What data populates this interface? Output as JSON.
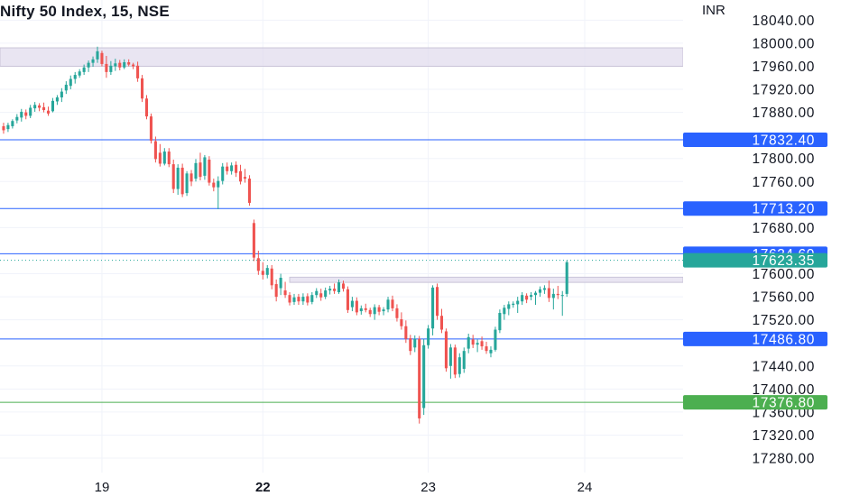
{
  "header": {
    "title": "Nifty 50 Index, 15, NSE",
    "currency": "INR"
  },
  "colors": {
    "up": "#26a69a",
    "down": "#ef5350",
    "hline": "#2962ff",
    "green_line": "#4caf50",
    "zone": "#e1dcee",
    "zone_border": "#c9c4d8",
    "grid": "#f0f3fa"
  },
  "chart_data": {
    "type": "candlestick",
    "title": "Nifty 50 Index, 15, NSE",
    "y_unit": "INR",
    "ylim": [
      17255,
      18075
    ],
    "y_ticks": [
      18040,
      18000,
      17960,
      17920,
      17880,
      17800,
      17760,
      17680,
      17600,
      17560,
      17520,
      17440,
      17400,
      17360,
      17320,
      17280
    ],
    "y_tick_labels": [
      "18040.00",
      "18000.00",
      "17960.00",
      "17920.00",
      "17880.00",
      "17800.00",
      "17760.00",
      "17680.00",
      "17600.00",
      "17560.00",
      "17520.00",
      "17440.00",
      "17400.00",
      "17360.00",
      "17320.00",
      "17280.00"
    ],
    "x_labels": [
      {
        "label": "19",
        "bar": 22,
        "bold": false
      },
      {
        "label": "22",
        "bar": 58,
        "bold": true
      },
      {
        "label": "23",
        "bar": 95,
        "bold": false
      },
      {
        "label": "24",
        "bar": 130,
        "bold": false
      }
    ],
    "x_bar_range": [
      -0.8,
      152
    ],
    "candles": [
      [
        17856,
        17862,
        17843,
        17849
      ],
      [
        17851,
        17862,
        17846,
        17858
      ],
      [
        17856,
        17868,
        17852,
        17865
      ],
      [
        17866,
        17877,
        17861,
        17872
      ],
      [
        17871,
        17886,
        17864,
        17881
      ],
      [
        17880,
        17885,
        17868,
        17874
      ],
      [
        17874,
        17893,
        17870,
        17888
      ],
      [
        17887,
        17898,
        17881,
        17893
      ],
      [
        17892,
        17896,
        17882,
        17888
      ],
      [
        17889,
        17897,
        17880,
        17884
      ],
      [
        17883,
        17890,
        17874,
        17878
      ],
      [
        17882,
        17905,
        17880,
        17900
      ],
      [
        17899,
        17910,
        17893,
        17906
      ],
      [
        17906,
        17922,
        17898,
        17916
      ],
      [
        17918,
        17934,
        17912,
        17928
      ],
      [
        17926,
        17944,
        17920,
        17938
      ],
      [
        17938,
        17950,
        17930,
        17945
      ],
      [
        17944,
        17955,
        17940,
        17951
      ],
      [
        17950,
        17963,
        17945,
        17958
      ],
      [
        17958,
        17970,
        17950,
        17966
      ],
      [
        17966,
        17977,
        17959,
        17972
      ],
      [
        17972,
        17994,
        17966,
        17986
      ],
      [
        17983,
        17987,
        17960,
        17964
      ],
      [
        17964,
        17978,
        17940,
        17950
      ],
      [
        17950,
        17969,
        17945,
        17961
      ],
      [
        17960,
        17973,
        17952,
        17965
      ],
      [
        17966,
        17971,
        17953,
        17958
      ],
      [
        17958,
        17972,
        17955,
        17967
      ],
      [
        17967,
        17972,
        17960,
        17963
      ],
      [
        17963,
        17966,
        17955,
        17960
      ],
      [
        17961,
        17968,
        17933,
        17939
      ],
      [
        17939,
        17945,
        17898,
        17904
      ],
      [
        17904,
        17910,
        17868,
        17873
      ],
      [
        17873,
        17878,
        17826,
        17831
      ],
      [
        17830,
        17838,
        17793,
        17799
      ],
      [
        17810,
        17825,
        17786,
        17791
      ],
      [
        17791,
        17818,
        17788,
        17812
      ],
      [
        17812,
        17818,
        17785,
        17790
      ],
      [
        17790,
        17798,
        17740,
        17747
      ],
      [
        17747,
        17790,
        17737,
        17784
      ],
      [
        17784,
        17791,
        17733,
        17738
      ],
      [
        17740,
        17778,
        17735,
        17774
      ],
      [
        17774,
        17780,
        17752,
        17760
      ],
      [
        17765,
        17799,
        17760,
        17792
      ],
      [
        17793,
        17810,
        17762,
        17768
      ],
      [
        17770,
        17806,
        17763,
        17802
      ],
      [
        17798,
        17804,
        17753,
        17758
      ],
      [
        17758,
        17765,
        17743,
        17750
      ],
      [
        17750,
        17769,
        17712,
        17761
      ],
      [
        17761,
        17792,
        17755,
        17786
      ],
      [
        17786,
        17793,
        17772,
        17778
      ],
      [
        17778,
        17793,
        17772,
        17788
      ],
      [
        17789,
        17795,
        17768,
        17775
      ],
      [
        17778,
        17789,
        17755,
        17760
      ],
      [
        17768,
        17782,
        17758,
        17765
      ],
      [
        17765,
        17771,
        17718,
        17723
      ],
      [
        17688,
        17694,
        17622,
        17628
      ],
      [
        17627,
        17640,
        17598,
        17605
      ],
      [
        17605,
        17620,
        17590,
        17598
      ],
      [
        17598,
        17615,
        17592,
        17610
      ],
      [
        17609,
        17615,
        17573,
        17580
      ],
      [
        17582,
        17590,
        17552,
        17560
      ],
      [
        17575,
        17600,
        17563,
        17593
      ],
      [
        17571,
        17586,
        17558,
        17563
      ],
      [
        17563,
        17568,
        17545,
        17550
      ],
      [
        17551,
        17565,
        17546,
        17559
      ],
      [
        17560,
        17565,
        17546,
        17552
      ],
      [
        17552,
        17566,
        17546,
        17560
      ],
      [
        17561,
        17566,
        17545,
        17550
      ],
      [
        17551,
        17568,
        17547,
        17563
      ],
      [
        17563,
        17575,
        17558,
        17570
      ],
      [
        17566,
        17574,
        17553,
        17559
      ],
      [
        17560,
        17576,
        17556,
        17571
      ],
      [
        17571,
        17579,
        17564,
        17574
      ],
      [
        17574,
        17583,
        17565,
        17570
      ],
      [
        17568,
        17590,
        17565,
        17585
      ],
      [
        17583,
        17588,
        17569,
        17574
      ],
      [
        17573,
        17578,
        17532,
        17537
      ],
      [
        17542,
        17560,
        17535,
        17553
      ],
      [
        17553,
        17559,
        17528,
        17533
      ],
      [
        17535,
        17545,
        17529,
        17540
      ],
      [
        17540,
        17548,
        17533,
        17537
      ],
      [
        17537,
        17541,
        17525,
        17530
      ],
      [
        17530,
        17547,
        17520,
        17542
      ],
      [
        17542,
        17546,
        17528,
        17534
      ],
      [
        17535,
        17542,
        17528,
        17538
      ],
      [
        17538,
        17560,
        17533,
        17555
      ],
      [
        17555,
        17562,
        17535,
        17540
      ],
      [
        17540,
        17547,
        17517,
        17523
      ],
      [
        17521,
        17533,
        17503,
        17509
      ],
      [
        17509,
        17519,
        17480,
        17487
      ],
      [
        17488,
        17494,
        17459,
        17466
      ],
      [
        17472,
        17493,
        17464,
        17487
      ],
      [
        17487,
        17492,
        17340,
        17349
      ],
      [
        17367,
        17487,
        17355,
        17476
      ],
      [
        17476,
        17511,
        17470,
        17505
      ],
      [
        17505,
        17580,
        17493,
        17576
      ],
      [
        17577,
        17583,
        17520,
        17527
      ],
      [
        17527,
        17539,
        17497,
        17503
      ],
      [
        17500,
        17505,
        17430,
        17436
      ],
      [
        17440,
        17478,
        17418,
        17472
      ],
      [
        17472,
        17477,
        17419,
        17425
      ],
      [
        17426,
        17462,
        17420,
        17455
      ],
      [
        17435,
        17472,
        17428,
        17466
      ],
      [
        17470,
        17496,
        17462,
        17490
      ],
      [
        17486,
        17494,
        17471,
        17477
      ],
      [
        17477,
        17486,
        17464,
        17480
      ],
      [
        17483,
        17491,
        17468,
        17474
      ],
      [
        17474,
        17482,
        17461,
        17466
      ],
      [
        17462,
        17474,
        17455,
        17468
      ],
      [
        17468,
        17508,
        17465,
        17503
      ],
      [
        17502,
        17538,
        17497,
        17532
      ],
      [
        17530,
        17546,
        17520,
        17541
      ],
      [
        17539,
        17552,
        17528,
        17547
      ],
      [
        17546,
        17552,
        17541,
        17548
      ],
      [
        17547,
        17560,
        17532,
        17553
      ],
      [
        17552,
        17568,
        17546,
        17563
      ],
      [
        17562,
        17566,
        17549,
        17555
      ],
      [
        17560,
        17568,
        17554,
        17563
      ],
      [
        17563,
        17570,
        17546,
        17567
      ],
      [
        17567,
        17578,
        17560,
        17573
      ],
      [
        17572,
        17580,
        17565,
        17575
      ],
      [
        17575,
        17588,
        17551,
        17558
      ],
      [
        17558,
        17574,
        17538,
        17565
      ],
      [
        17565,
        17579,
        17556,
        17563
      ],
      [
        17563,
        17570,
        17527,
        17563
      ],
      [
        17565,
        17623,
        17560,
        17620
      ]
    ],
    "price_lines": [
      {
        "value": 17832.4,
        "label": "17832.40",
        "style": "solid",
        "color": "#2962ff"
      },
      {
        "value": 17713.2,
        "label": "17713.20",
        "style": "solid",
        "color": "#2962ff"
      },
      {
        "value": 17634.6,
        "label": "17634.60",
        "style": "solid",
        "color": "#2962ff"
      },
      {
        "value": 17623.35,
        "label": "17623.35",
        "style": "dotted",
        "color": "#26a69a"
      },
      {
        "value": 17486.8,
        "label": "17486.80",
        "style": "solid",
        "color": "#2962ff"
      },
      {
        "value": 17376.8,
        "label": "17376.80",
        "style": "solid",
        "color": "#4caf50"
      }
    ],
    "zones": [
      {
        "from": 17960,
        "to": 17992,
        "bar_start": -0.8,
        "bar_end": 152
      },
      {
        "from": 17585,
        "to": 17594,
        "bar_start": 64,
        "bar_end": 152
      }
    ],
    "vertical_grid_bars": [
      22,
      58,
      95,
      130
    ]
  }
}
